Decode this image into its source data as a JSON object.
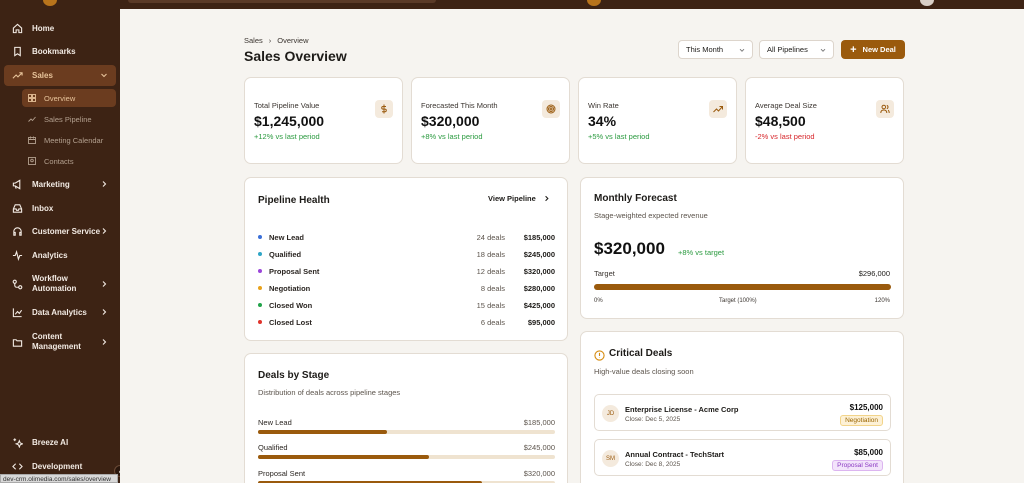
{
  "sidebar": {
    "items": [
      {
        "label": "Home",
        "icon": "home-icon"
      },
      {
        "label": "Bookmarks",
        "icon": "bookmark-icon"
      },
      {
        "label": "Sales",
        "icon": "trending-up-icon"
      },
      {
        "label": "Marketing",
        "icon": "megaphone-icon"
      },
      {
        "label": "Inbox",
        "icon": "inbox-icon"
      },
      {
        "label": "Customer Service",
        "icon": "headset-icon"
      },
      {
        "label": "Analytics",
        "icon": "activity-icon"
      },
      {
        "label": "Workflow",
        "label2": "Automation",
        "icon": "workflow-icon"
      },
      {
        "label": "Data Analytics",
        "icon": "chart-line-icon"
      },
      {
        "label": "Content",
        "label2": "Management",
        "icon": "folder-icon"
      },
      {
        "label": "Breeze AI",
        "icon": "sparkles-icon"
      },
      {
        "label": "Development",
        "icon": "code-icon"
      }
    ],
    "sales_sub": [
      {
        "label": "Overview",
        "icon": "grid-icon"
      },
      {
        "label": "Sales Pipeline",
        "icon": "trending-up-icon"
      },
      {
        "label": "Meeting Calendar",
        "icon": "calendar-icon"
      },
      {
        "label": "Contacts",
        "icon": "contact-icon"
      }
    ]
  },
  "status_url": "dev-crm.olimedia.com/sales/overview",
  "header": {
    "breadcrumb": [
      "Sales",
      "Overview"
    ],
    "title": "Sales Overview",
    "period_select": "This Month",
    "pipeline_select": "All Pipelines",
    "new_deal": "New Deal"
  },
  "kpis": [
    {
      "label": "Total Pipeline Value",
      "value": "$1,245,000",
      "change": "+12% vs last period",
      "trend": "up",
      "icon": "dollar-icon"
    },
    {
      "label": "Forecasted This Month",
      "value": "$320,000",
      "change": "+8% vs last period",
      "trend": "up",
      "icon": "target-icon"
    },
    {
      "label": "Win Rate",
      "value": "34%",
      "change": "+5% vs last period",
      "trend": "up",
      "icon": "trending-up-icon"
    },
    {
      "label": "Average Deal Size",
      "value": "$48,500",
      "change": "-2% vs last period",
      "trend": "down",
      "icon": "users-icon"
    }
  ],
  "pipeline": {
    "title": "Pipeline Health",
    "view_link": "View Pipeline",
    "rows": [
      {
        "stage": "New Lead",
        "count": "24 deals",
        "amount": "$185,000",
        "color": "#3b6fd8"
      },
      {
        "stage": "Qualified",
        "count": "18 deals",
        "amount": "$245,000",
        "color": "#2fa6c7"
      },
      {
        "stage": "Proposal Sent",
        "count": "12 deals",
        "amount": "$320,000",
        "color": "#9b46d9"
      },
      {
        "stage": "Negotiation",
        "count": "8 deals",
        "amount": "$280,000",
        "color": "#e8a21b"
      },
      {
        "stage": "Closed Won",
        "count": "15 deals",
        "amount": "$425,000",
        "color": "#22a34a"
      },
      {
        "stage": "Closed Lost",
        "count": "6 deals",
        "amount": "$95,000",
        "color": "#e0332b"
      }
    ]
  },
  "forecast": {
    "title": "Monthly Forecast",
    "subtitle": "Stage-weighted expected revenue",
    "value": "$320,000",
    "vs_target": "+8% vs target",
    "target_label": "Target",
    "target_value": "$296,000",
    "progress": 1.0,
    "axis": [
      "0%",
      "Target (100%)",
      "120%"
    ]
  },
  "stages": {
    "title": "Deals by Stage",
    "subtitle": "Distribution of deals across pipeline stages",
    "rows": [
      {
        "stage": "New Lead",
        "amount": "$185,000",
        "fraction": 0.435
      },
      {
        "stage": "Qualified",
        "amount": "$245,000",
        "fraction": 0.576
      },
      {
        "stage": "Proposal Sent",
        "amount": "$320,000",
        "fraction": 0.753
      }
    ]
  },
  "critical": {
    "title": "Critical Deals",
    "subtitle": "High-value deals closing soon",
    "deals": [
      {
        "initials": "JD",
        "name": "Enterprise License - Acme Corp",
        "close": "Close: Dec 5, 2025",
        "amount": "$125,000",
        "stage": "Negotiation",
        "tag_bg": "#fdf1d6",
        "tag_fg": "#9a6500"
      },
      {
        "initials": "SM",
        "name": "Annual Contract - TechStart",
        "close": "Close: Dec 8, 2025",
        "amount": "$85,000",
        "stage": "Proposal Sent",
        "tag_bg": "#f3e4fb",
        "tag_fg": "#8a37c2"
      }
    ]
  },
  "colors": {
    "accent": "#9a5a0d",
    "sidebar": "#3d2314",
    "positive": "#2a9a3f",
    "negative": "#d7262b"
  }
}
